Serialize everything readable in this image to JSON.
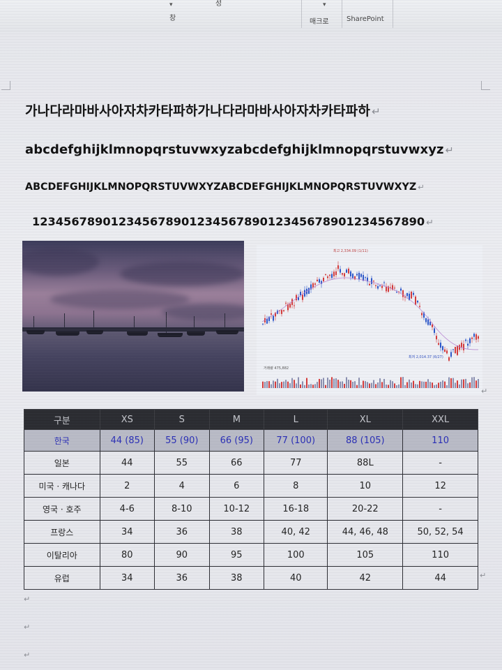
{
  "ribbon": {
    "top_glyph": "성",
    "window_label": "창",
    "macro_label": "매크로",
    "sharepoint_label": "SharePoint"
  },
  "document": {
    "korean_line": "가나다라마바사아자차카타파하가나다라마바사아자차카타파하",
    "lower_line": "abcdefghijklmnopqrstuvwxyzabcdefghijklmnopqrstuvwxyz",
    "upper_line": "ABCDEFGHIJKLMNOPQRSTUVWXYZABCDEFGHIJKLMNOPQRSTUVWXYZ",
    "digit_line": "12345678901234567890123456789012345678901234567890",
    "paragraph_mark": "↵"
  },
  "stock_chart": {
    "high_label": "최고 2,334.09 (1/11)",
    "low_label": "최저 2,014.37 (6/27)",
    "volume_label": "거래량 475,882"
  },
  "size_table": {
    "headers": [
      "구분",
      "XS",
      "S",
      "M",
      "L",
      "XL",
      "XXL"
    ],
    "rows": [
      [
        "한국",
        "44 (85)",
        "55 (90)",
        "66 (95)",
        "77 (100)",
        "88 (105)",
        "110"
      ],
      [
        "일본",
        "44",
        "55",
        "66",
        "77",
        "88L",
        "-"
      ],
      [
        "미국 · 캐나다",
        "2",
        "4",
        "6",
        "8",
        "10",
        "12"
      ],
      [
        "영국 · 호주",
        "4-6",
        "8-10",
        "10-12",
        "16-18",
        "20-22",
        "-"
      ],
      [
        "프랑스",
        "34",
        "36",
        "38",
        "40, 42",
        "44, 46, 48",
        "50, 52, 54"
      ],
      [
        "이탈리아",
        "80",
        "90",
        "95",
        "100",
        "105",
        "110"
      ],
      [
        "유럽",
        "34",
        "36",
        "38",
        "40",
        "42",
        "44"
      ]
    ]
  },
  "colors": {
    "table_header_bg": "#2b2c31",
    "korea_row_text": "#2a2fb5",
    "candle_up": "#d43a3a",
    "candle_down": "#2b56c9"
  }
}
